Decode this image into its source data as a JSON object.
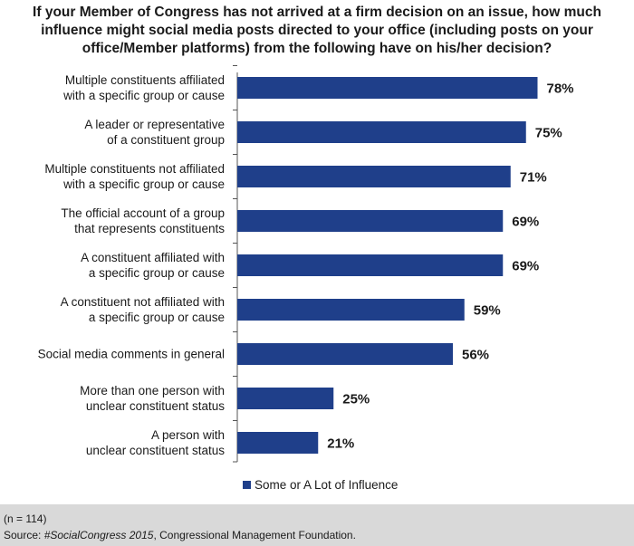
{
  "chart_data": {
    "type": "bar",
    "orientation": "horizontal",
    "title": "If your Member of Congress has not arrived at a firm decision on an issue, how much influence might social media posts directed to your office (including posts on your office/Member platforms) from the following have on his/her decision?",
    "categories": [
      [
        "Multiple constituents affiliated",
        "with a specific group or cause"
      ],
      [
        "A leader or representative",
        "of a constituent group"
      ],
      [
        "Multiple constituents not affiliated",
        "with a specific group or cause"
      ],
      [
        "The official account of a group",
        "that represents constituents"
      ],
      [
        "A constituent affiliated with",
        "a specific group or cause"
      ],
      [
        "A constituent not affiliated with",
        "a specific group or cause"
      ],
      [
        "Social media comments in general"
      ],
      [
        "More than one person with",
        "unclear constituent status"
      ],
      [
        "A person with",
        "unclear constituent status"
      ]
    ],
    "series": [
      {
        "name": "Some or A Lot of Influence",
        "values": [
          78,
          75,
          71,
          69,
          69,
          59,
          56,
          25,
          21
        ],
        "color": "#1f3f8a"
      }
    ],
    "value_labels": [
      "78%",
      "75%",
      "71%",
      "69%",
      "69%",
      "59%",
      "56%",
      "25%",
      "21%"
    ],
    "xlim": [
      0,
      100
    ],
    "grid": false,
    "legend_position": "bottom"
  },
  "footer": {
    "note": "(n = 114)",
    "source_prefix": "Source: ",
    "source_title": "#SocialCongress 2015",
    "source_suffix": ", Congressional Management Foundation."
  }
}
